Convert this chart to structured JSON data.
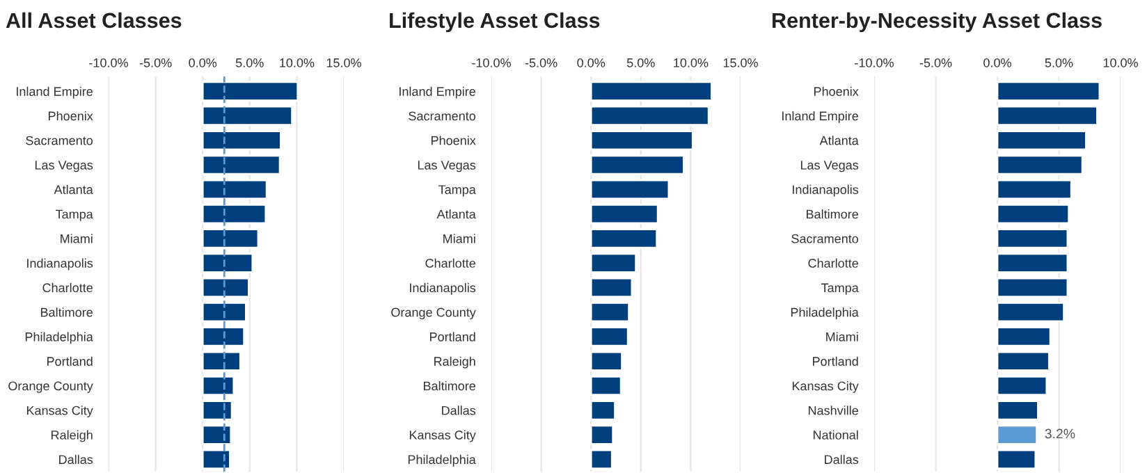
{
  "chart_data": [
    {
      "type": "bar",
      "orientation": "horizontal",
      "title": "All Asset Classes",
      "categories": [
        "Inland Empire",
        "Phoenix",
        "Sacramento",
        "Las Vegas",
        "Atlanta",
        "Tampa",
        "Miami",
        "Indianapolis",
        "Charlotte",
        "Baltimore",
        "Philadelphia",
        "Portland",
        "Orange County",
        "Kansas City",
        "Raleigh",
        "Dallas"
      ],
      "values": [
        10.1,
        9.5,
        8.3,
        8.2,
        6.8,
        6.7,
        5.9,
        5.3,
        4.9,
        4.6,
        4.4,
        4.0,
        3.3,
        3.1,
        3.0,
        2.9
      ],
      "color": "#003f7d",
      "xlim": [
        -10,
        15
      ],
      "xticks": [
        {
          "value": -10,
          "label": "-10.0%"
        },
        {
          "value": -5,
          "label": "-5.0%"
        },
        {
          "value": 0,
          "label": "0.0%"
        },
        {
          "value": 5,
          "label": "5.0%"
        },
        {
          "value": 10,
          "label": "10.0%"
        },
        {
          "value": 15,
          "label": "15.0%"
        }
      ],
      "ref_lines": [
        {
          "axis": "x",
          "value": 2.3,
          "color": "#5b9bd5",
          "line_style": "dashed"
        }
      ],
      "grid": "x"
    },
    {
      "type": "bar",
      "orientation": "horizontal",
      "title": "Lifestyle Asset Class",
      "categories": [
        "Inland Empire",
        "Sacramento",
        "Phoenix",
        "Las Vegas",
        "Tampa",
        "Atlanta",
        "Miami",
        "Charlotte",
        "Indianapolis",
        "Orange County",
        "Portland",
        "Raleigh",
        "Baltimore",
        "Dallas",
        "Kansas City",
        "Philadelphia"
      ],
      "values": [
        12.1,
        11.8,
        10.2,
        9.3,
        7.8,
        6.7,
        6.6,
        4.5,
        4.1,
        3.8,
        3.7,
        3.1,
        3.0,
        2.4,
        2.2,
        2.1
      ],
      "color": "#003f7d",
      "xlim": [
        -10,
        15
      ],
      "xticks": [
        {
          "value": -10,
          "label": "-10.0%"
        },
        {
          "value": -5,
          "label": "-5.0%"
        },
        {
          "value": 0,
          "label": "0.0%"
        },
        {
          "value": 5,
          "label": "5.0%"
        },
        {
          "value": 10,
          "label": "10.0%"
        },
        {
          "value": 15,
          "label": "15.0%"
        }
      ],
      "grid": "x"
    },
    {
      "type": "bar",
      "orientation": "horizontal",
      "title": "Renter-by-Necessity Asset Class",
      "categories": [
        "Phoenix",
        "Inland Empire",
        "Atlanta",
        "Las Vegas",
        "Indianapolis",
        "Baltimore",
        "Sacramento",
        "Charlotte",
        "Tampa",
        "Philadelphia",
        "Miami",
        "Portland",
        "Kansas City",
        "Nashville",
        "National",
        "Dallas"
      ],
      "values": [
        8.3,
        8.1,
        7.2,
        6.9,
        6.0,
        5.8,
        5.7,
        5.7,
        5.7,
        5.4,
        4.3,
        4.2,
        4.0,
        3.3,
        3.2,
        3.1
      ],
      "colors": [
        "#003f7d",
        "#003f7d",
        "#003f7d",
        "#003f7d",
        "#003f7d",
        "#003f7d",
        "#003f7d",
        "#003f7d",
        "#003f7d",
        "#003f7d",
        "#003f7d",
        "#003f7d",
        "#003f7d",
        "#003f7d",
        "#5b9bd5",
        "#003f7d"
      ],
      "value_labels": [
        null,
        null,
        null,
        null,
        null,
        null,
        null,
        null,
        null,
        null,
        null,
        null,
        null,
        null,
        "3.2%",
        null
      ],
      "xlim": [
        -10,
        10
      ],
      "xticks": [
        {
          "value": -10,
          "label": "-10.0%"
        },
        {
          "value": -5,
          "label": "-5.0%"
        },
        {
          "value": 0,
          "label": "0.0%"
        },
        {
          "value": 5,
          "label": "5.0%"
        },
        {
          "value": 10,
          "label": "10.0%"
        }
      ],
      "grid": "x"
    }
  ]
}
